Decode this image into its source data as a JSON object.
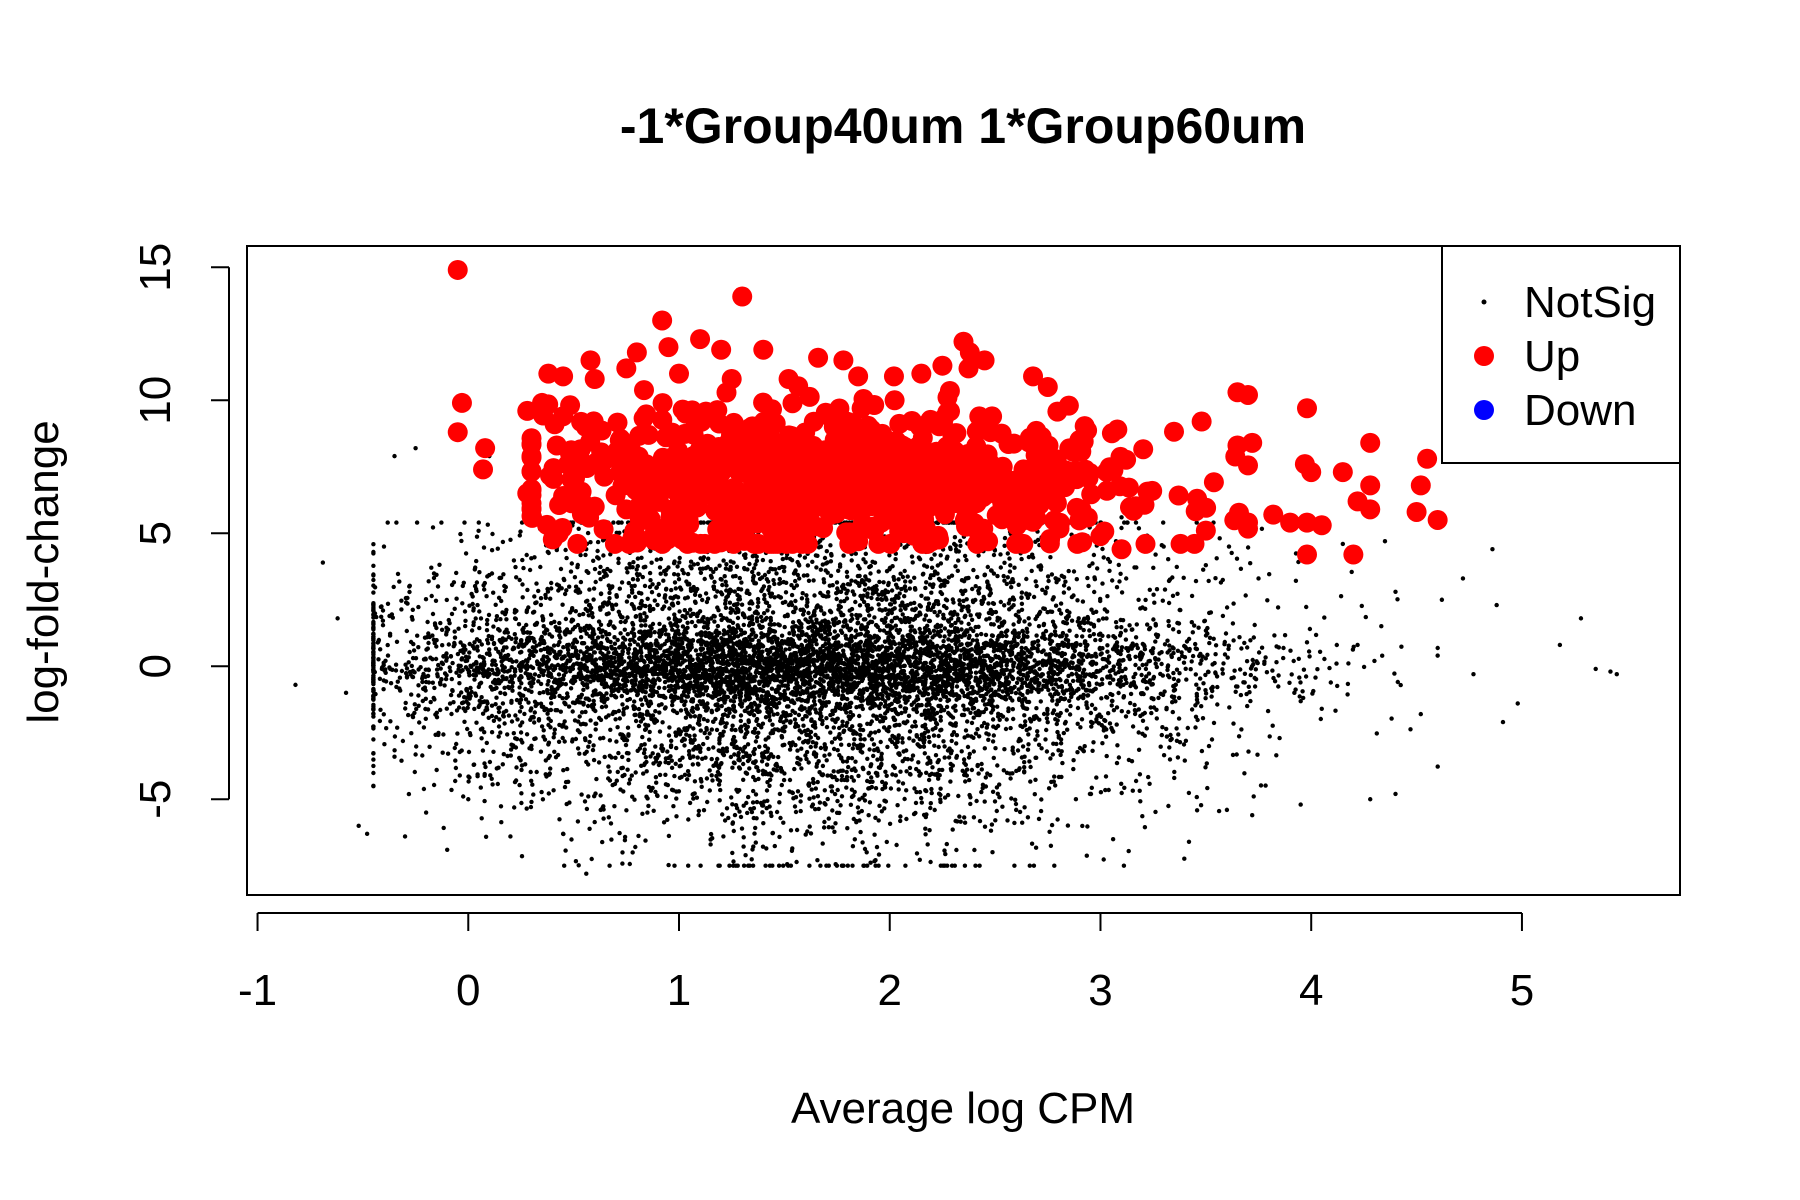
{
  "chart_data": {
    "type": "scatter",
    "title": "-1*Group40um 1*Group60um",
    "xlabel": "Average log CPM",
    "ylabel": "log-fold-change",
    "xlim": [
      -1.05,
      5.75
    ],
    "ylim": [
      -8.6,
      15.8
    ],
    "x_ticks": [
      -1,
      0,
      1,
      2,
      3,
      4,
      5
    ],
    "y_ticks": [
      -5,
      0,
      5,
      10,
      15
    ],
    "legend": {
      "position": "top-right",
      "entries": [
        {
          "label": "NotSig",
          "color": "#000000",
          "marker": "small-dot"
        },
        {
          "label": "Up",
          "color": "#ff0000",
          "marker": "large-dot"
        },
        {
          "label": "Down",
          "color": "#0000ff",
          "marker": "large-dot"
        }
      ]
    },
    "series": [
      {
        "name": "NotSig",
        "color": "#000000",
        "points": [
          [
            -0.82,
            -0.7
          ],
          [
            -0.69,
            3.9
          ],
          [
            -0.62,
            1.8
          ],
          [
            -0.58,
            -1.0
          ],
          [
            -0.52,
            -6.0
          ],
          [
            -0.48,
            -6.3
          ],
          [
            -0.45,
            2.1
          ],
          [
            -0.4,
            4.5
          ],
          [
            -0.35,
            -3.4
          ],
          [
            -0.3,
            -6.4
          ],
          [
            -0.25,
            8.2
          ],
          [
            -0.2,
            -5.5
          ],
          [
            -0.1,
            -6.9
          ],
          [
            0.1,
            7.9
          ],
          [
            -0.35,
            7.9
          ],
          [
            0.0,
            -5.0
          ],
          [
            0.2,
            -6.4
          ],
          [
            0.45,
            -6.3
          ],
          [
            0.56,
            -7.8
          ],
          [
            0.78,
            -7.0
          ],
          [
            1.15,
            -6.7
          ],
          [
            2.18,
            -6.7
          ],
          [
            3.06,
            -6.5
          ],
          [
            3.42,
            -6.6
          ],
          [
            3.6,
            -5.4
          ],
          [
            3.72,
            -5.6
          ],
          [
            3.95,
            -5.2
          ],
          [
            4.28,
            -5.0
          ],
          [
            4.4,
            -4.8
          ],
          [
            4.72,
            3.3
          ],
          [
            4.86,
            4.4
          ],
          [
            4.88,
            2.3
          ],
          [
            4.91,
            -2.1
          ],
          [
            4.98,
            -1.4
          ],
          [
            5.18,
            0.8
          ],
          [
            5.28,
            1.8
          ],
          [
            5.35,
            -0.1
          ],
          [
            5.42,
            -0.2
          ],
          [
            5.45,
            -0.3
          ],
          [
            4.77,
            -0.3
          ],
          [
            4.6,
            0.4
          ],
          [
            4.52,
            -1.8
          ],
          [
            4.4,
            2.8
          ],
          [
            4.62,
            2.5
          ],
          [
            4.3,
            0.2
          ],
          [
            4.22,
            0.8
          ],
          [
            4.12,
            0.1
          ],
          [
            4.05,
            -1.6
          ],
          [
            3.98,
            0.9
          ],
          [
            3.92,
            -1.0
          ],
          [
            4.35,
            4.7
          ],
          [
            4.15,
            4.6
          ],
          [
            3.1,
            5.6
          ],
          [
            3.3,
            4.5
          ],
          [
            3.5,
            3.8
          ],
          [
            3.75,
            3.3
          ],
          [
            3.85,
            -2.7
          ],
          [
            3.35,
            -4.2
          ],
          [
            2.95,
            -4.8
          ],
          [
            2.6,
            -5.4
          ],
          [
            1.9,
            -5.6
          ],
          [
            1.4,
            -5.9
          ],
          [
            0.85,
            -5.5
          ],
          [
            0.3,
            -5.1
          ],
          [
            -0.15,
            -3.9
          ],
          [
            -0.28,
            3.0
          ]
        ]
      },
      {
        "name": "Up",
        "color": "#ff0000",
        "points": [
          [
            -0.05,
            14.9
          ],
          [
            1.3,
            13.9
          ],
          [
            0.92,
            13.0
          ],
          [
            0.95,
            12.0
          ],
          [
            1.1,
            12.3
          ],
          [
            2.35,
            12.2
          ],
          [
            2.38,
            11.8
          ],
          [
            2.45,
            11.5
          ],
          [
            0.58,
            11.5
          ],
          [
            0.8,
            11.8
          ],
          [
            1.2,
            11.9
          ],
          [
            1.4,
            11.9
          ],
          [
            1.66,
            11.6
          ],
          [
            1.78,
            11.5
          ],
          [
            2.25,
            11.3
          ],
          [
            2.15,
            11.0
          ],
          [
            0.38,
            11.0
          ],
          [
            0.45,
            10.9
          ],
          [
            0.6,
            10.8
          ],
          [
            0.75,
            11.2
          ],
          [
            1.0,
            11.0
          ],
          [
            1.25,
            10.8
          ],
          [
            1.52,
            10.8
          ],
          [
            1.85,
            10.9
          ],
          [
            2.02,
            10.9
          ],
          [
            2.68,
            10.9
          ],
          [
            2.75,
            10.5
          ],
          [
            3.65,
            10.3
          ],
          [
            3.7,
            10.2
          ],
          [
            -0.03,
            9.9
          ],
          [
            -0.05,
            8.8
          ],
          [
            0.08,
            8.2
          ],
          [
            0.07,
            7.4
          ],
          [
            0.28,
            9.6
          ],
          [
            0.35,
            9.9
          ],
          [
            0.45,
            9.4
          ],
          [
            2.85,
            9.8
          ],
          [
            3.98,
            9.7
          ],
          [
            3.48,
            9.2
          ],
          [
            3.08,
            8.9
          ],
          [
            2.9,
            8.5
          ],
          [
            3.65,
            8.3
          ],
          [
            3.72,
            8.4
          ],
          [
            4.28,
            8.4
          ],
          [
            4.55,
            7.8
          ],
          [
            3.97,
            7.6
          ],
          [
            4.0,
            7.3
          ],
          [
            4.15,
            7.3
          ],
          [
            4.28,
            6.8
          ],
          [
            4.52,
            6.8
          ],
          [
            4.22,
            6.2
          ],
          [
            4.28,
            5.9
          ],
          [
            4.5,
            5.8
          ],
          [
            4.6,
            5.5
          ],
          [
            3.98,
            5.4
          ],
          [
            4.05,
            5.3
          ],
          [
            3.98,
            4.2
          ],
          [
            4.2,
            4.2
          ],
          [
            3.9,
            5.4
          ],
          [
            3.82,
            5.7
          ],
          [
            3.5,
            5.1
          ],
          [
            3.38,
            4.6
          ],
          [
            3.1,
            4.4
          ],
          [
            2.6,
            4.6
          ],
          [
            2.2,
            4.7
          ],
          [
            1.85,
            4.7
          ],
          [
            1.5,
            4.9
          ],
          [
            1.25,
            5.0
          ],
          [
            0.95,
            5.3
          ],
          [
            0.75,
            5.9
          ],
          [
            0.6,
            6.0
          ],
          [
            0.45,
            6.4
          ],
          [
            0.28,
            6.5
          ],
          [
            0.3,
            7.9
          ],
          [
            0.42,
            8.3
          ]
        ]
      },
      {
        "name": "Down",
        "color": "#0000ff",
        "points": []
      }
    ]
  }
}
